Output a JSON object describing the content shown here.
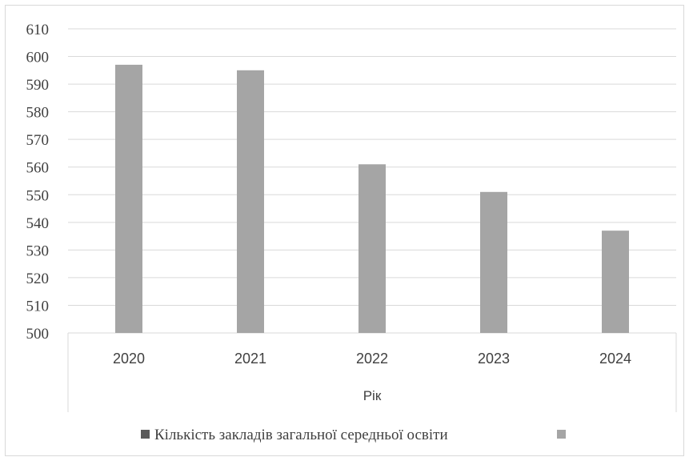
{
  "chart_data": {
    "type": "bar",
    "categories": [
      "2020",
      "2021",
      "2022",
      "2023",
      "2024"
    ],
    "series": [
      {
        "name": "Кількість закладів загальної середньої освіти",
        "values": [
          597,
          595,
          561,
          551,
          537
        ],
        "color": "#a5a5a5"
      }
    ],
    "xlabel": "Рік",
    "ylabel": "",
    "ylim": [
      500,
      610
    ],
    "yticks": [
      "500",
      "510",
      "520",
      "530",
      "540",
      "550",
      "560",
      "570",
      "580",
      "590",
      "600",
      "610"
    ],
    "grid": true,
    "legend_position": "bottom",
    "legend": {
      "marker_color": "#595959",
      "extra_marker_color": "#a5a5a5"
    }
  }
}
